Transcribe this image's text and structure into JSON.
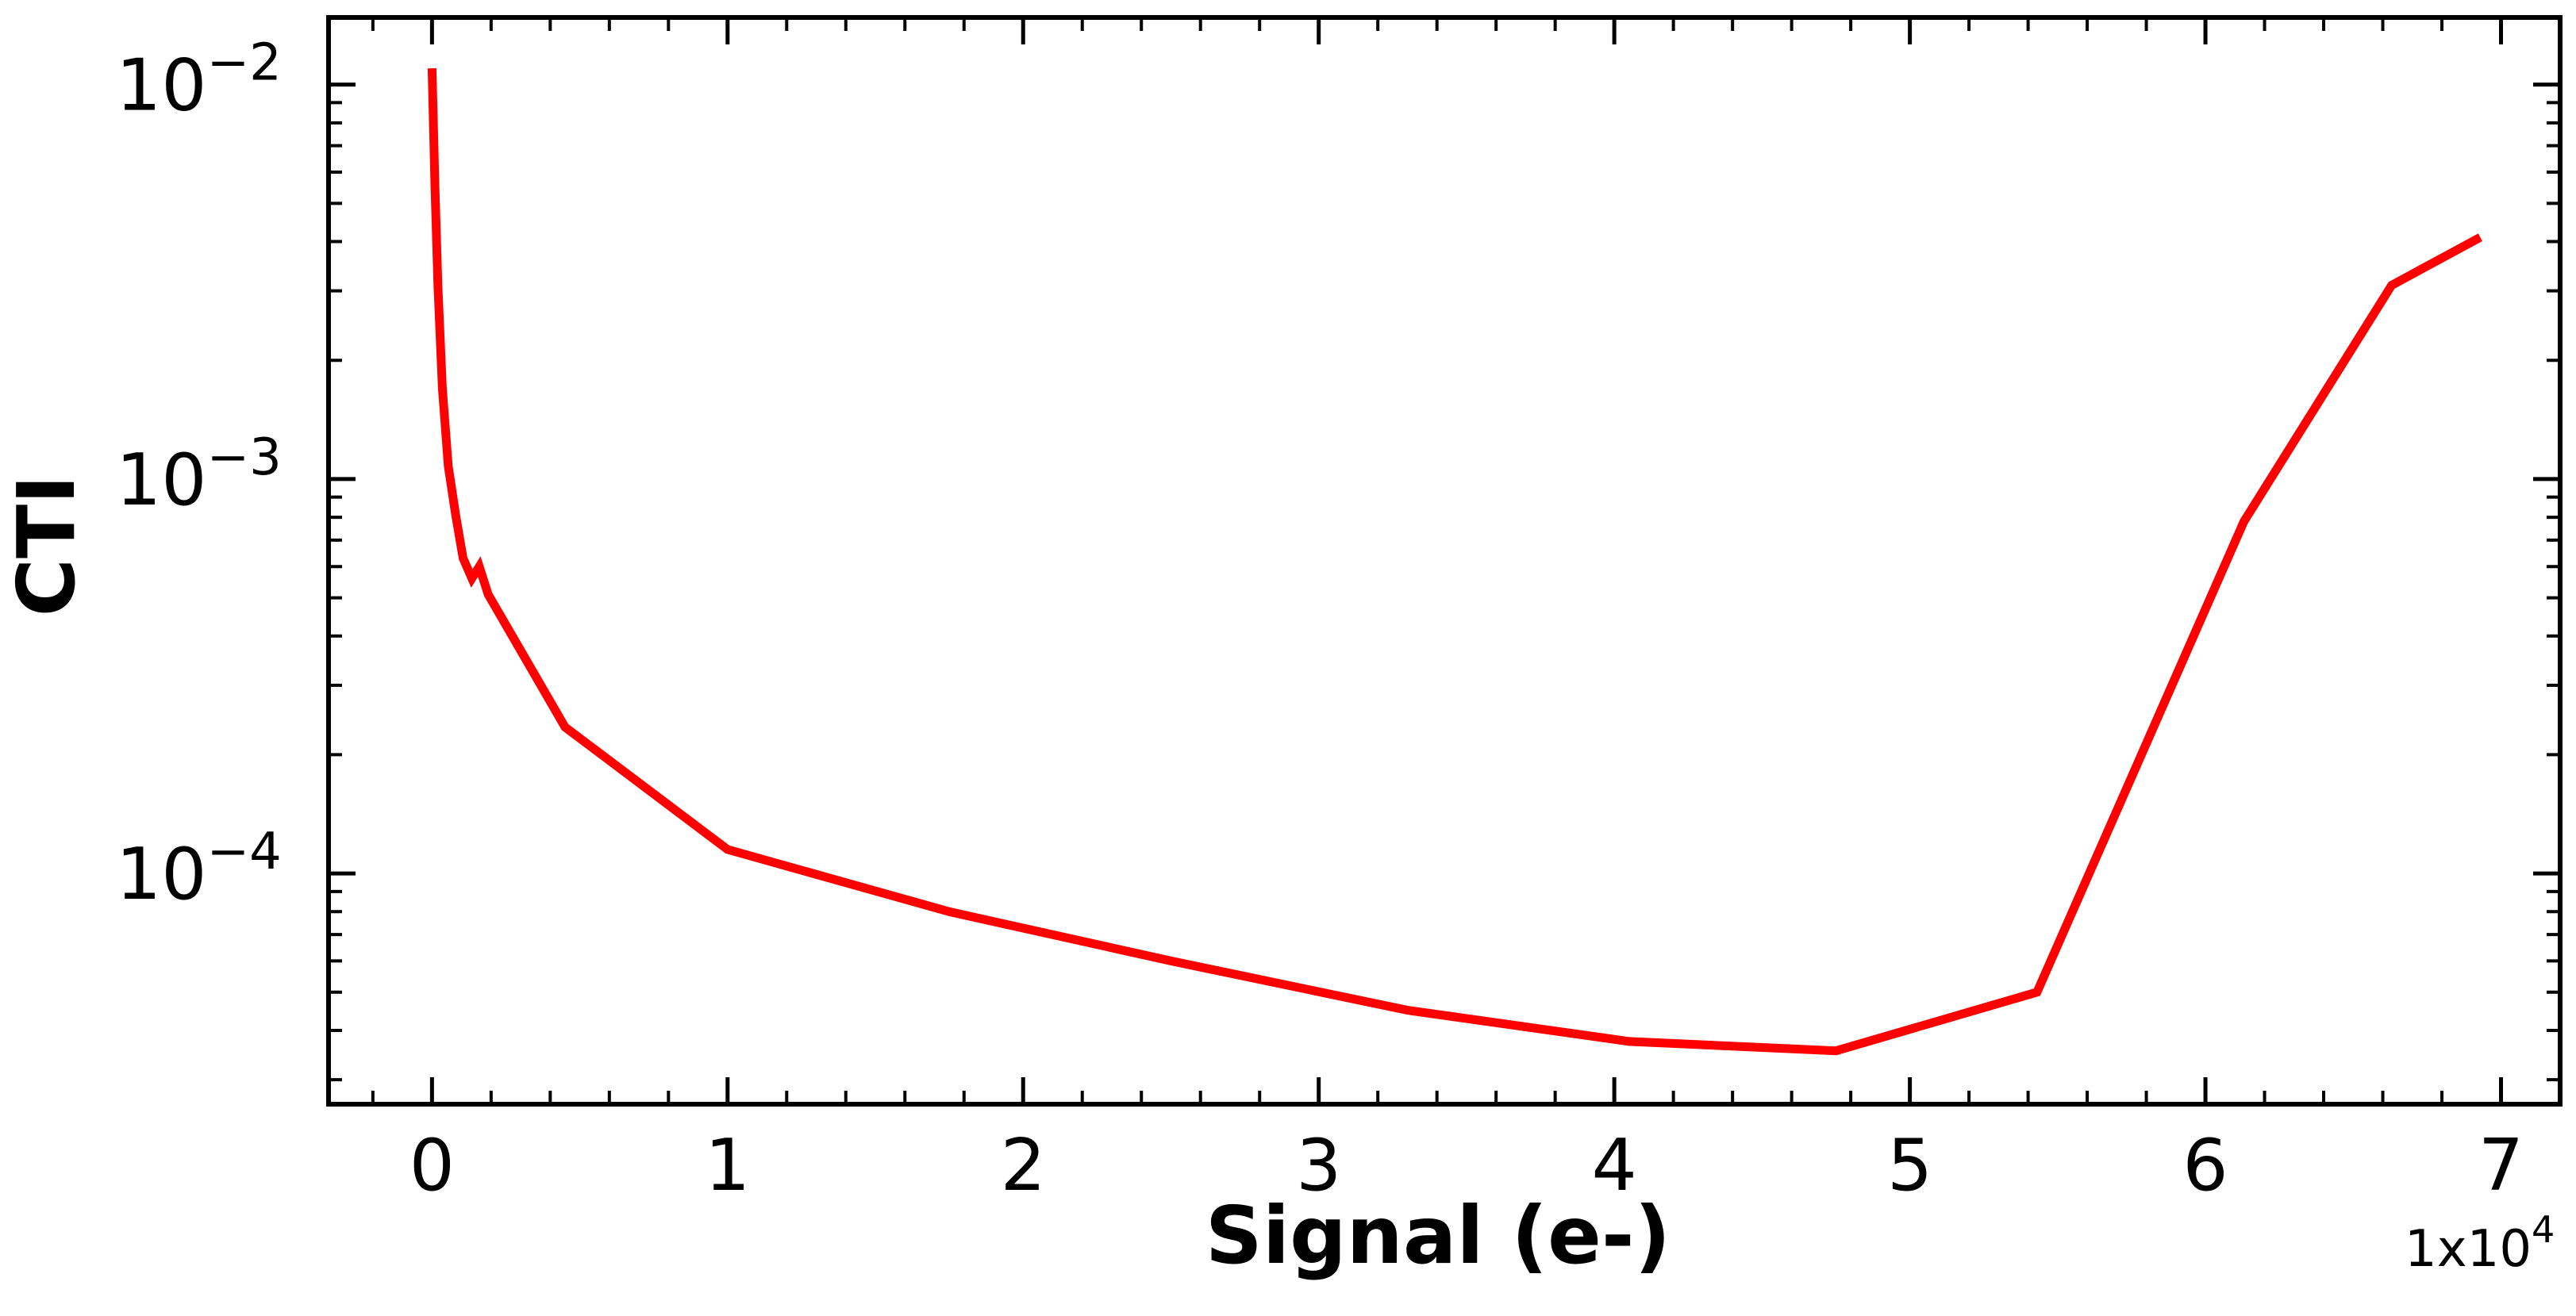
{
  "chart_data": {
    "type": "line",
    "xlabel": "Signal (e-)",
    "ylabel": "CTI",
    "x_multiplier": {
      "base": "1x10",
      "exponent": "4"
    },
    "xlim": [
      -3500,
      72000
    ],
    "ylim": [
      2.6e-05,
      0.0148
    ],
    "yscale": "log",
    "grid": false,
    "x_ticks": [
      {
        "value": 0,
        "label": "0"
      },
      {
        "value": 10000,
        "label": "1"
      },
      {
        "value": 20000,
        "label": "2"
      },
      {
        "value": 30000,
        "label": "3"
      },
      {
        "value": 40000,
        "label": "4"
      },
      {
        "value": 50000,
        "label": "5"
      },
      {
        "value": 60000,
        "label": "6"
      },
      {
        "value": 70000,
        "label": "7"
      }
    ],
    "y_ticks": [
      {
        "value": 0.01,
        "base": "10",
        "exponent": "−2"
      },
      {
        "value": 0.001,
        "base": "10",
        "exponent": "−3"
      },
      {
        "value": 0.0001,
        "base": "10",
        "exponent": "−4"
      }
    ],
    "series": [
      {
        "color": "#ff0000",
        "points": [
          [
            0,
            0.011
          ],
          [
            100,
            0.0055
          ],
          [
            200,
            0.0031
          ],
          [
            350,
            0.0017
          ],
          [
            550,
            0.00108
          ],
          [
            800,
            0.00081
          ],
          [
            1050,
            0.00063
          ],
          [
            1350,
            0.00056
          ],
          [
            1600,
            0.0006
          ],
          [
            1900,
            0.00051
          ],
          [
            4500,
            0.000235
          ],
          [
            10000,
            0.000115
          ],
          [
            17500,
            8e-05
          ],
          [
            25000,
            6e-05
          ],
          [
            33000,
            4.5e-05
          ],
          [
            40500,
            3.75e-05
          ],
          [
            47500,
            3.55e-05
          ],
          [
            54300,
            5e-05
          ],
          [
            61300,
            0.00078
          ],
          [
            66300,
            0.0031
          ],
          [
            69300,
            0.0041
          ]
        ]
      }
    ]
  }
}
